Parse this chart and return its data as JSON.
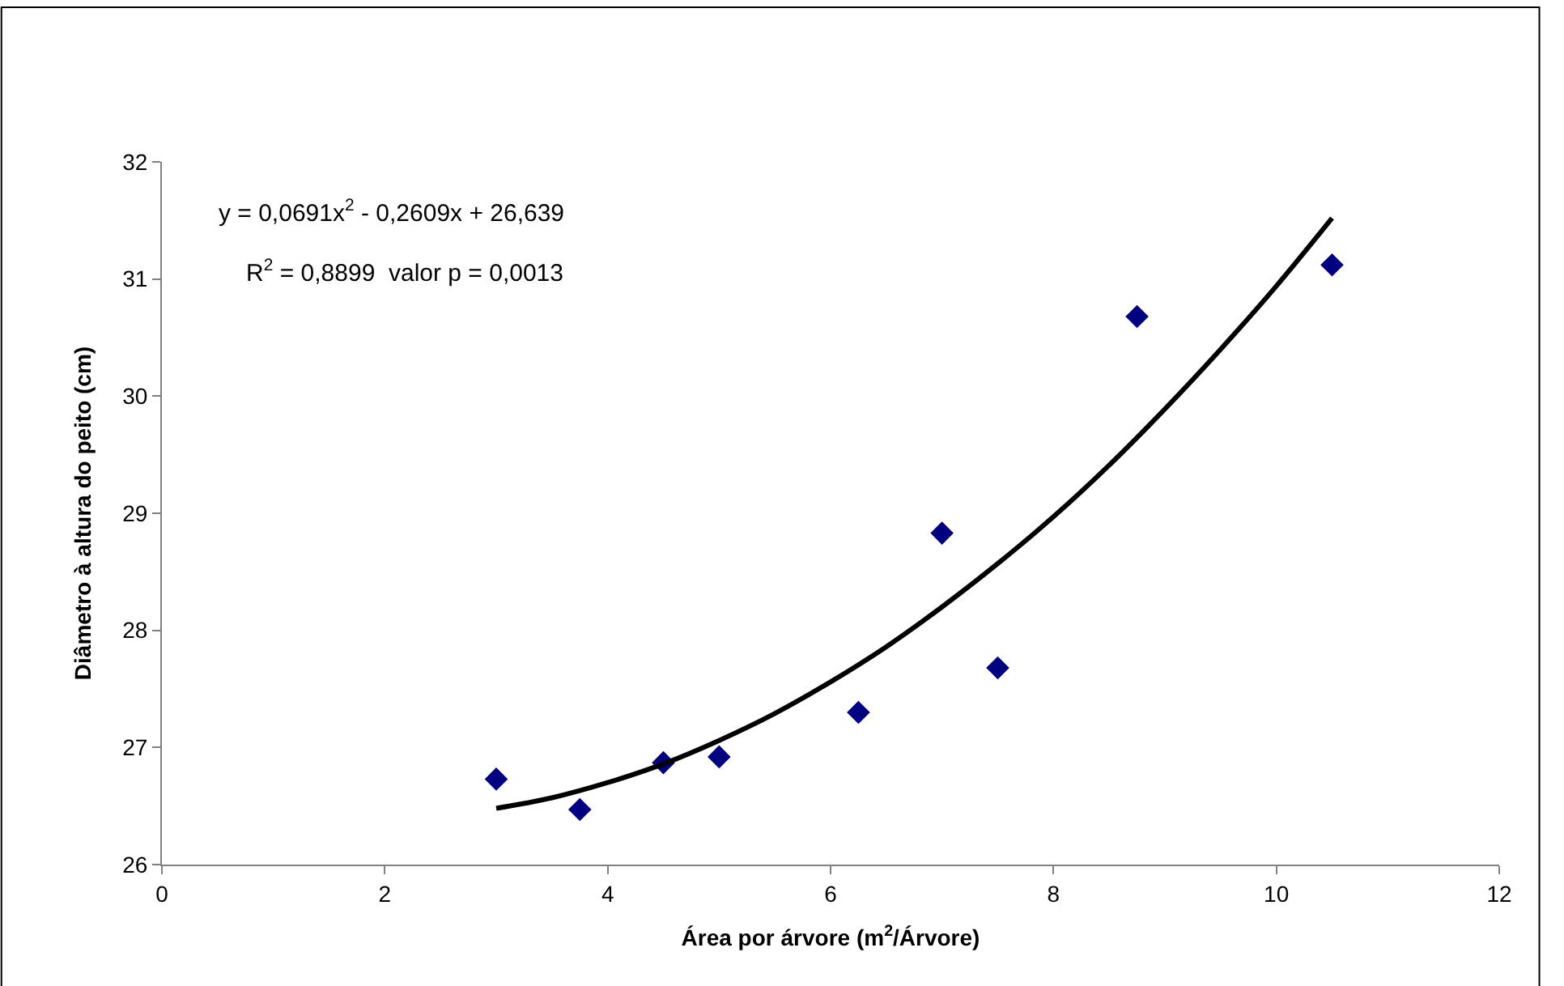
{
  "chart_data": {
    "type": "scatter",
    "xlabel": "Área por árvore (m$^{2}$/Árvore)",
    "ylabel": "Diâmetro à altura do peito (cm)",
    "annotations": [
      "y = 0,0691x$^{2}$ - 0,2609x + 26,639",
      "R$^{2}$ = 0,8899  valor p = 0,0013"
    ],
    "x": [
      3,
      3.75,
      4.5,
      5,
      6.25,
      7,
      7.5,
      8.75,
      10.5
    ],
    "series": [
      {
        "color": "#000080",
        "marker": "diamond",
        "values": [
          26.73,
          26.47,
          26.87,
          26.92,
          27.3,
          28.83,
          27.68,
          30.68,
          31.12
        ]
      },
      {
        "type": "line",
        "color": "#000000",
        "marker": "none",
        "x": [
          3,
          3.5,
          4,
          4.5,
          5,
          5.5,
          6,
          6.5,
          7,
          7.5,
          8,
          8.5,
          9,
          9.5,
          10,
          10.5
        ],
        "values": [
          26.48,
          26.57,
          26.7,
          26.86,
          27.06,
          27.29,
          27.56,
          27.86,
          28.2,
          28.57,
          28.97,
          29.41,
          29.89,
          30.4,
          30.94,
          31.52
        ]
      }
    ],
    "xlim": [
      0,
      12
    ],
    "xticks": [
      0,
      2,
      4,
      6,
      8,
      10,
      12
    ],
    "ylim": [
      26,
      32
    ],
    "yticks": [
      26,
      27,
      28,
      29,
      30,
      31,
      32
    ]
  }
}
